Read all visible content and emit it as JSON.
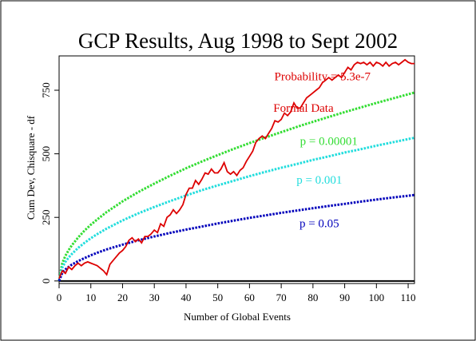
{
  "chart_data": {
    "type": "line",
    "title": "GCP Results, Aug 1998 to Sept 2002",
    "xlabel": "Number of Global Events",
    "ylabel": "Cum Dev, Chisquare - df",
    "xlim": [
      0,
      112
    ],
    "ylim": [
      -10,
      885
    ],
    "xticks": [
      0,
      10,
      20,
      30,
      40,
      50,
      60,
      70,
      80,
      90,
      100,
      110
    ],
    "yticks": [
      0,
      250,
      500,
      750
    ],
    "grid": false,
    "series": [
      {
        "name": "Formal Data",
        "color": "#dd0000",
        "style": "solid",
        "x": [
          0,
          1,
          2,
          3,
          4,
          5,
          6,
          7,
          8,
          9,
          10,
          11,
          12,
          13,
          14,
          15,
          16,
          17,
          18,
          19,
          20,
          21,
          22,
          23,
          24,
          25,
          26,
          27,
          28,
          29,
          30,
          31,
          32,
          33,
          34,
          35,
          36,
          37,
          38,
          39,
          40,
          41,
          42,
          43,
          44,
          45,
          46,
          47,
          48,
          49,
          50,
          51,
          52,
          53,
          54,
          55,
          56,
          57,
          58,
          59,
          60,
          61,
          62,
          63,
          64,
          65,
          66,
          67,
          68,
          69,
          70,
          71,
          72,
          73,
          74,
          75,
          76,
          77,
          78,
          79,
          80,
          81,
          82,
          83,
          84,
          85,
          86,
          87,
          88,
          89,
          90,
          91,
          92,
          93,
          94,
          95,
          96,
          97,
          98,
          99,
          100,
          101,
          102,
          103,
          104,
          105,
          106,
          107,
          108,
          109,
          110,
          111,
          112
        ],
        "values": [
          10,
          40,
          30,
          55,
          45,
          60,
          70,
          60,
          70,
          75,
          70,
          65,
          60,
          50,
          40,
          25,
          65,
          80,
          95,
          110,
          120,
          135,
          160,
          170,
          155,
          165,
          150,
          175,
          175,
          185,
          200,
          190,
          225,
          215,
          250,
          260,
          280,
          265,
          280,
          300,
          340,
          365,
          365,
          395,
          380,
          400,
          425,
          420,
          440,
          425,
          425,
          440,
          465,
          430,
          420,
          430,
          415,
          435,
          445,
          470,
          490,
          510,
          545,
          560,
          570,
          560,
          580,
          600,
          630,
          625,
          635,
          660,
          650,
          665,
          700,
          680,
          680,
          700,
          720,
          730,
          740,
          750,
          760,
          780,
          790,
          800,
          790,
          800,
          810,
          800,
          820,
          840,
          830,
          850,
          860,
          855,
          860,
          850,
          860,
          845,
          860,
          855,
          845,
          860,
          845,
          855,
          860,
          850,
          860,
          870,
          860,
          855,
          855
        ],
        "line_width": 1.8
      },
      {
        "name": "p = 0.00001",
        "color": "#33dd33",
        "style": "dotted",
        "x": [
          0,
          1,
          2,
          3,
          4,
          6,
          8,
          10,
          12,
          15,
          20,
          25,
          30,
          35,
          40,
          45,
          50,
          55,
          60,
          65,
          70,
          75,
          80,
          85,
          90,
          95,
          100,
          105,
          112
        ],
        "values": [
          0,
          70,
          99,
          121,
          140,
          171,
          198,
          221,
          242,
          271,
          313,
          350,
          383,
          414,
          443,
          470,
          495,
          519,
          542,
          564,
          585,
          606,
          626,
          645,
          664,
          682,
          700,
          717,
          741
        ]
      },
      {
        "name": "p = 0.001",
        "color": "#22dddd",
        "style": "dotted",
        "x": [
          0,
          1,
          2,
          3,
          4,
          6,
          8,
          10,
          12,
          15,
          20,
          25,
          30,
          35,
          40,
          45,
          50,
          55,
          60,
          65,
          70,
          75,
          80,
          85,
          90,
          95,
          100,
          105,
          112
        ],
        "values": [
          0,
          53,
          75,
          92,
          106,
          130,
          150,
          168,
          184,
          206,
          238,
          266,
          291,
          314,
          336,
          357,
          376,
          394,
          412,
          429,
          445,
          460,
          476,
          490,
          505,
          518,
          532,
          545,
          563
        ]
      },
      {
        "name": "p = 0.05",
        "color": "#0000bb",
        "style": "dotted",
        "x": [
          0,
          1,
          2,
          3,
          4,
          6,
          8,
          10,
          12,
          15,
          20,
          25,
          30,
          35,
          40,
          45,
          50,
          55,
          60,
          65,
          70,
          75,
          80,
          85,
          90,
          95,
          100,
          105,
          112
        ],
        "values": [
          0,
          32,
          45,
          55,
          64,
          78,
          90,
          101,
          111,
          124,
          143,
          160,
          175,
          189,
          202,
          214,
          226,
          237,
          248,
          258,
          268,
          277,
          286,
          295,
          303,
          312,
          320,
          328,
          338
        ]
      }
    ],
    "annotations": [
      {
        "text": "Probability = 5.3e-7",
        "color": "#dd0000",
        "x": 83,
        "y": 790,
        "anchor": "middle"
      },
      {
        "text": "Formal Data",
        "color": "#dd0000",
        "x": 77,
        "y": 665,
        "anchor": "middle"
      },
      {
        "text": "p = 0.00001",
        "color": "#33dd33",
        "x": 85,
        "y": 535,
        "anchor": "middle"
      },
      {
        "text": "p = 0.001",
        "color": "#22dddd",
        "x": 82,
        "y": 382,
        "anchor": "middle"
      },
      {
        "text": "p = 0.05",
        "color": "#0000bb",
        "x": 82,
        "y": 212,
        "anchor": "middle"
      }
    ],
    "zero_line": true
  }
}
